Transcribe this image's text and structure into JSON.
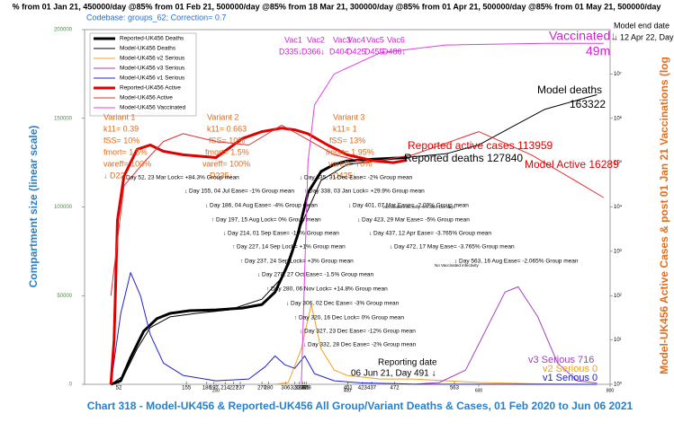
{
  "chart_data": {
    "type": "line",
    "top_text": "% from 01 Jan 21, 450000/day @85% from 01 Feb 21, 500000/day @85% from 18 Mar 21, 300000/day @85% from 01 Apr 21, 500000/day @85% from 01 May 21, 500000/day",
    "subtitle": "Codebase: groups_62; Correction= 0.7",
    "title": "Chart 318 - Model-UK456 & Reported-UK456 All Group/Variant Deaths & Cases, 01 Feb 2020 to Jun 06 2021",
    "ylabel": "Compartment size (linear scale)",
    "y2label": "Model-UK456 Active Cases & post 01 Jan 21 Vaccinations (log",
    "xlim": [
      0,
      800
    ],
    "xticks": [
      200,
      400,
      600,
      800
    ],
    "event_days": [
      52,
      155,
      186,
      197,
      214,
      227,
      237,
      270,
      280,
      306,
      320,
      327,
      332,
      335,
      338,
      401,
      423,
      437,
      472,
      563
    ],
    "ylim": [
      0,
      200000
    ],
    "yticks": [
      0,
      50000,
      100000,
      150000,
      200000
    ],
    "y2_log": true,
    "y2lim": [
      1,
      100000000
    ],
    "y2ticks": [
      {
        "value": 1,
        "label": "10⁰"
      },
      {
        "value": 10,
        "label": "10¹"
      },
      {
        "value": 100,
        "label": "10²"
      },
      {
        "value": 1000,
        "label": "10³"
      },
      {
        "value": 10000,
        "label": "10⁴"
      },
      {
        "value": 100000,
        "label": "10⁵"
      },
      {
        "value": 1000000,
        "label": "10⁶"
      },
      {
        "value": 10000000,
        "label": "10⁷"
      }
    ],
    "legend": "top-left",
    "series": [
      {
        "name": "Reported-UK456 Deaths",
        "color": "#000000",
        "linewidth": 3,
        "x": [
          40,
          55,
          70,
          90,
          110,
          130,
          160,
          200,
          240,
          270,
          290,
          310,
          325,
          340,
          360,
          380,
          400,
          440,
          491
        ],
        "values": [
          0,
          2000,
          15000,
          30000,
          37000,
          40000,
          41500,
          42000,
          43000,
          45000,
          52000,
          68000,
          85000,
          108000,
          120000,
          124000,
          126000,
          127000,
          127840
        ]
      },
      {
        "name": "Model-UK456 Deaths",
        "color": "#000000",
        "linewidth": 1,
        "x": [
          40,
          60,
          80,
          100,
          130,
          170,
          220,
          270,
          300,
          330,
          360,
          400,
          491,
          550,
          600,
          650,
          700,
          780
        ],
        "values": [
          0,
          5000,
          20000,
          32000,
          38000,
          40000,
          42000,
          48000,
          60000,
          90000,
          115000,
          124000,
          128000,
          130000,
          135000,
          145000,
          155000,
          163322
        ]
      },
      {
        "name": "Model-UK456 v2 Serious",
        "color": "#f0a020",
        "linewidth": 1,
        "x": [
          290,
          310,
          330,
          345,
          360,
          380,
          400,
          450,
          500,
          600,
          700,
          780
        ],
        "values": [
          0,
          1000,
          20000,
          45000,
          20000,
          8000,
          5000,
          3000,
          3000,
          1000,
          200,
          0
        ]
      },
      {
        "name": "Model-UK456 v3 Serious",
        "color": "#a040c0",
        "linewidth": 1,
        "x": [
          500,
          540,
          580,
          610,
          640,
          660,
          690,
          720,
          750,
          780
        ],
        "values": [
          0,
          1000,
          8000,
          30000,
          52000,
          55000,
          38000,
          12000,
          2000,
          716
        ]
      },
      {
        "name": "Model-UK456 v1 Serious",
        "color": "#2020d0",
        "linewidth": 1,
        "x": [
          40,
          55,
          70,
          85,
          100,
          120,
          150,
          200,
          250,
          275,
          290,
          305,
          320,
          335,
          350,
          380,
          420,
          500,
          780
        ],
        "values": [
          0,
          40000,
          63000,
          50000,
          28000,
          12000,
          5000,
          2000,
          3000,
          10000,
          16000,
          11000,
          9000,
          16000,
          6000,
          2000,
          800,
          100,
          0
        ]
      },
      {
        "name": "Reported-UK456 Active",
        "color": "#e00000",
        "linewidth": 3,
        "axis": "y2",
        "x": [
          40,
          45,
          50,
          60,
          80,
          100,
          120,
          150,
          200,
          240,
          270,
          300,
          320,
          340,
          370,
          400,
          440,
          470,
          491
        ],
        "values": [
          1,
          10,
          5000,
          50000,
          200000,
          250000,
          180000,
          150000,
          130000,
          350000,
          500000,
          600000,
          550000,
          450000,
          250000,
          150000,
          110000,
          100000,
          113959
        ]
      },
      {
        "name": "Model-UK456 Active",
        "color": "#e03030",
        "linewidth": 1,
        "axis": "y2",
        "x": [
          40,
          60,
          90,
          120,
          150,
          200,
          250,
          300,
          330,
          380,
          430,
          500,
          600,
          680,
          760,
          790
        ],
        "values": [
          100,
          30000,
          100000,
          300000,
          450000,
          300000,
          250000,
          700000,
          400000,
          150000,
          100000,
          150000,
          500000,
          150000,
          30000,
          16289
        ]
      },
      {
        "name": "Model-UK456 Vaccinated",
        "color": "#e040e0",
        "linewidth": 1,
        "axis": "y2",
        "x": [
          330,
          340,
          350,
          380,
          450,
          550,
          700,
          790
        ],
        "values": [
          1,
          100000,
          2000000,
          10000000,
          30000000,
          45000000,
          49000000,
          49000000
        ]
      }
    ],
    "annotations": [
      {
        "text": "Variant 1",
        "color": "#e06a1a"
      },
      {
        "text": "k11= 0.39",
        "color": "#e06a1a"
      },
      {
        "text": "fSS= 10%",
        "color": "#e06a1a"
      },
      {
        "text": "fmort= 1.5%",
        "color": "#e06a1a"
      },
      {
        "text": "vareff= 100%",
        "color": "#e06a1a"
      },
      {
        "text": "↓ D22",
        "color": "#e06a1a"
      },
      {
        "text": "Variant 2",
        "color": "#e06a1a"
      },
      {
        "text": "k11= 0.663",
        "color": "#e06a1a"
      },
      {
        "text": "fSS= 10%",
        "color": "#e06a1a"
      },
      {
        "text": "fmort= 1.5%",
        "color": "#e06a1a"
      },
      {
        "text": "vareff= 100%",
        "color": "#e06a1a"
      },
      {
        "text": "D235↓",
        "color": "#e06a1a"
      },
      {
        "text": "Variant 3",
        "color": "#e06a1a"
      },
      {
        "text": "k11= 1",
        "color": "#e06a1a"
      },
      {
        "text": "fSS= 13%",
        "color": "#e06a1a"
      },
      {
        "text": "fmort= 1.95%",
        "color": "#e06a1a"
      },
      {
        "text": "vareff= 70%",
        "color": "#e06a1a"
      },
      {
        "text": "D425↓",
        "color": "#e06a1a"
      },
      {
        "text": "Vac1",
        "color": "#d020d0"
      },
      {
        "text": "Vac2",
        "color": "#d020d0"
      },
      {
        "text": "Vac3",
        "color": "#d020d0"
      },
      {
        "text": "Vac4",
        "color": "#d020d0"
      },
      {
        "text": "Vac5",
        "color": "#d020d0"
      },
      {
        "text": "Vac6",
        "color": "#d020d0"
      },
      {
        "text": "D335↓",
        "color": "#d020d0"
      },
      {
        "text": "D366↓",
        "color": "#d020d0"
      },
      {
        "text": "D404",
        "color": "#d020d0"
      },
      {
        "text": "D425",
        "color": "#d020d0"
      },
      {
        "text": "D455",
        "color": "#d020d0"
      },
      {
        "text": "D486↓",
        "color": "#d020d0"
      },
      {
        "text": "↓ Day 52, 23 Mar Lock= +84.3% Group mean",
        "color": "#000000"
      },
      {
        "text": "↓ Day 155, 04 Jul Ease= -1% Group mean",
        "color": "#000000"
      },
      {
        "text": "↓ Day 186, 04 Aug Ease= -4% Group mean",
        "color": "#000000"
      },
      {
        "text": "↑ Day 197, 15 Aug Lock= 0% Group mean",
        "color": "#000000"
      },
      {
        "text": "↓ Day 214, 01 Sep Ease= -16% Group mean",
        "color": "#000000"
      },
      {
        "text": "↑ Day 227, 14 Sep Lock= +1% Group mean",
        "color": "#000000"
      },
      {
        "text": "↑ Day 237, 24 Sep Lock= +3% Group mean",
        "color": "#000000"
      },
      {
        "text": "↓ Day 270, 27 Oct Ease= -1.5% Group mean",
        "color": "#000000"
      },
      {
        "text": "↑ Day 280, 06 Nov Lock= +14.8% Group mean",
        "color": "#000000"
      },
      {
        "text": "↓ Day 306, 02 Dec Ease= -3% Group mean",
        "color": "#000000"
      },
      {
        "text": "↑ Day 320, 16 Dec Lock= 0% Group mean",
        "color": "#000000"
      },
      {
        "text": "↓ Day 327, 23 Dec Ease= -12% Group mean",
        "color": "#000000"
      },
      {
        "text": "↓ Day 332, 28 Dec Ease= -2% Group mean",
        "color": "#000000"
      },
      {
        "text": "↓ Day 335, 31 Dec Ease= -2% Group mean",
        "color": "#000000"
      },
      {
        "text": "↑ Day 338, 03 Jan Lock= +29.9% Group mean",
        "color": "#000000"
      },
      {
        "text": "↓ Day 401, 07 Mar Ease= -2.09% Group mean",
        "color": "#000000"
      },
      {
        "text": "Vaccinated infectivity -5% after 150 days",
        "color": "#000000"
      },
      {
        "text": "↓ Day 423, 29 Mar Ease= -5% Group mean",
        "color": "#000000"
      },
      {
        "text": "↓ Day 437, 12 Apr Ease= -3.765% Group mean",
        "color": "#000000"
      },
      {
        "text": "↓ Day 472, 17 May Ease= -3.765% Group mean",
        "color": "#000000"
      },
      {
        "text": "↓ Day 563, 16 Aug Ease= -2.065% Group mean",
        "color": "#000000"
      },
      {
        "text": "No Vaccinated infectivity",
        "color": "#000000"
      },
      {
        "text": "Reported active cases 113959",
        "color": "#e00000"
      },
      {
        "text": "Reported deaths 127840",
        "color": "#000000"
      },
      {
        "text": "Model Active 16289",
        "color": "#e00000"
      },
      {
        "text": "Model deaths",
        "color": "#000000"
      },
      {
        "text": "163322",
        "color": "#000000"
      },
      {
        "text": "Model end date",
        "color": "#000000"
      },
      {
        "text": "↓ 12 Apr 22, Day",
        "color": "#000000"
      },
      {
        "text": "Vaccinated↓",
        "color": "#d020d0"
      },
      {
        "text": "49m",
        "color": "#d020d0"
      },
      {
        "text": "Reporting date",
        "color": "#000000"
      },
      {
        "text": "06 Jun 21, Day 491 ↓",
        "color": "#000000"
      },
      {
        "text": "v3 Serious 716",
        "color": "#a040c0"
      },
      {
        "text": "v2 Serious 0",
        "color": "#f0a020"
      },
      {
        "text": "v1 Serious 0",
        "color": "#2020d0"
      }
    ]
  }
}
